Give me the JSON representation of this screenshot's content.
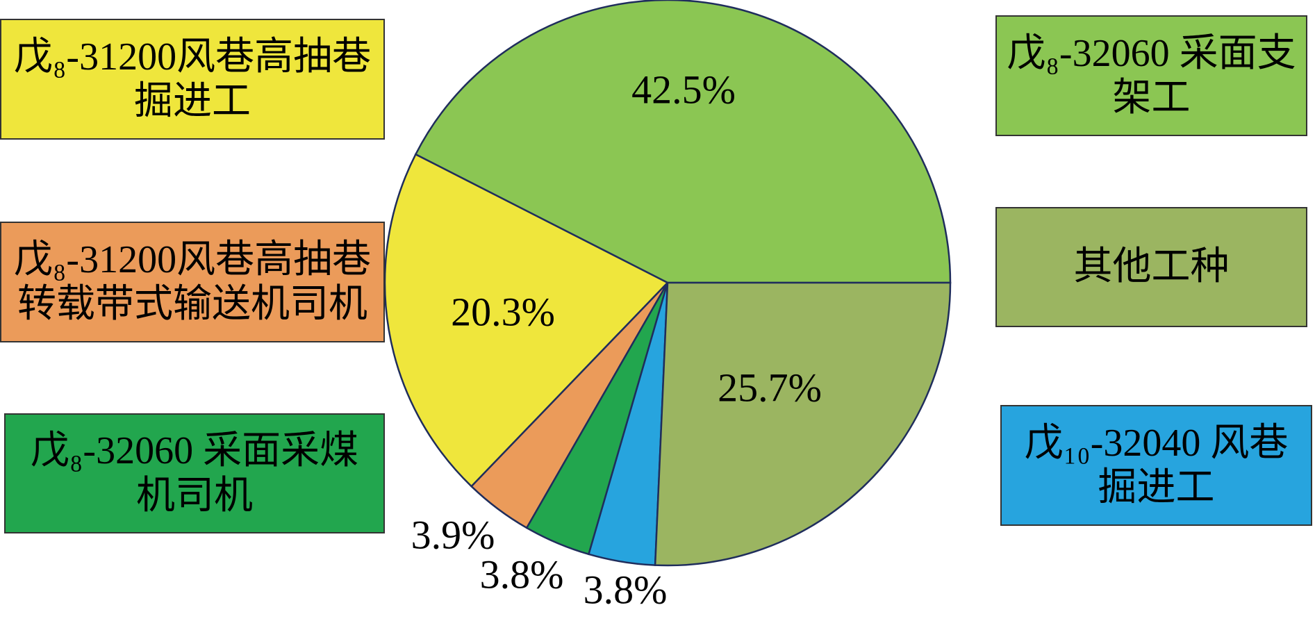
{
  "chart_data": {
    "type": "pie",
    "categories": [
      "戊₈-32060 采面支架工",
      "戊₈-31200风巷高抽巷掘进工",
      "戊₈-31200风巷高抽巷转载带式输送机司机",
      "戊₈-32060 采面采煤机司机",
      "戊₁₀-32040 风巷掘进工",
      "其他工种"
    ],
    "values": [
      42.5,
      20.3,
      3.9,
      3.8,
      3.8,
      25.7
    ],
    "value_labels": [
      "42.5%",
      "20.3%",
      "3.9%",
      "3.8%",
      "3.8%",
      "25.7%"
    ],
    "colors": [
      "#8bc653",
      "#efe63c",
      "#eb9b5a",
      "#22a64e",
      "#27a4de",
      "#9bb561"
    ]
  }
}
